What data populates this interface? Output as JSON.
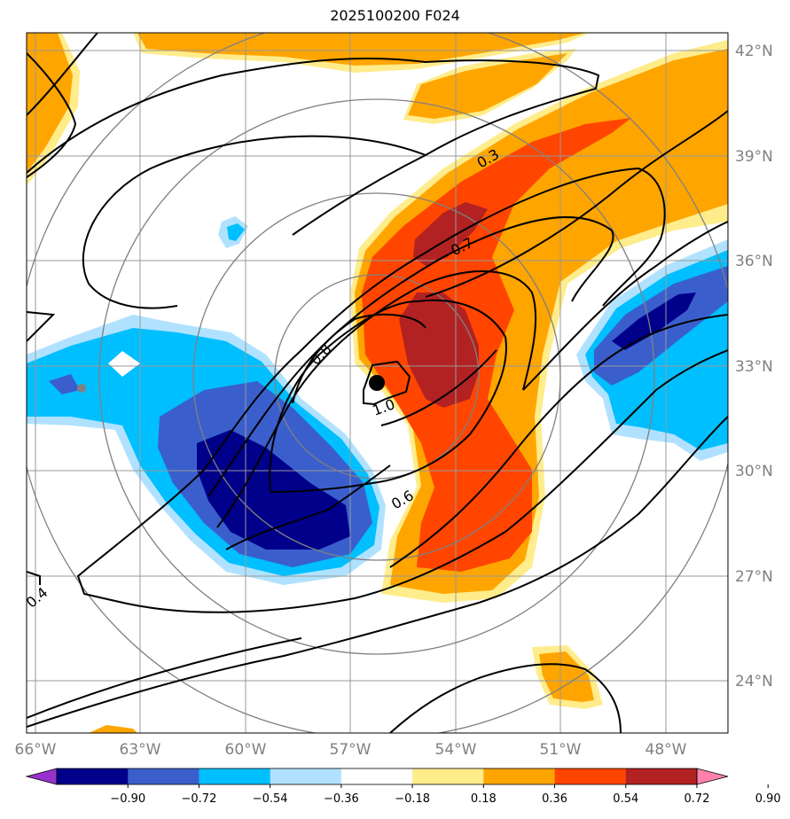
{
  "chart_data": {
    "type": "contour-map",
    "title": "2025100200 F024",
    "lon_ticks": [
      "66°W",
      "63°W",
      "60°W",
      "57°W",
      "54°W",
      "51°W",
      "48°W"
    ],
    "lat_ticks": [
      "42°N",
      "39°N",
      "36°N",
      "33°N",
      "30°N",
      "27°N",
      "24°N"
    ],
    "lon_range": [
      -66,
      -46.5
    ],
    "lat_range": [
      22.5,
      42.5
    ],
    "contour_labels": [
      "0.3",
      "0.7",
      "0.8",
      "1.0",
      "0.6",
      "0.4"
    ],
    "center_marker": {
      "lon": -56.3,
      "lat": 32.5
    },
    "colorbar": {
      "ticks": [
        "−0.90",
        "−0.72",
        "−0.54",
        "−0.36",
        "−0.18",
        "0.18",
        "0.36",
        "0.54",
        "0.72",
        "0.90"
      ],
      "bins": [
        "#9932CC",
        "#00008B",
        "#3A5FCD",
        "#00BFFF",
        "#B0E2FF",
        "#FFFFFF",
        "#FFEC8B",
        "#FFA500",
        "#FF4500",
        "#B22222",
        "#FF82AB"
      ]
    }
  }
}
